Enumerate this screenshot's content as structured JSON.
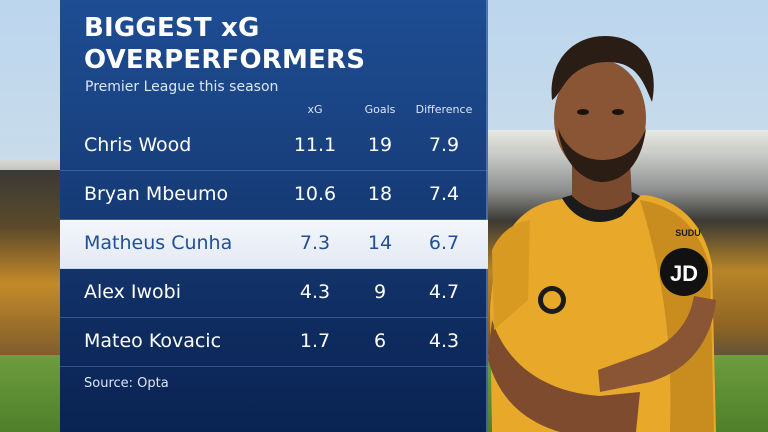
{
  "panel": {
    "title_lines": [
      "BIGGEST xG",
      "OVERPERFORMERS"
    ],
    "subtitle": "Premier League this season",
    "columns": [
      "xG",
      "Goals",
      "Difference"
    ],
    "rows": [
      {
        "name": "Chris Wood",
        "xg": "11.1",
        "goals": "19",
        "difference": "7.9",
        "highlighted": false
      },
      {
        "name": "Bryan Mbeumo",
        "xg": "10.6",
        "goals": "18",
        "difference": "7.4",
        "highlighted": false
      },
      {
        "name": "Matheus Cunha",
        "xg": "7.3",
        "goals": "14",
        "difference": "6.7",
        "highlighted": true
      },
      {
        "name": "Alex Iwobi",
        "xg": "4.3",
        "goals": "9",
        "difference": "4.7",
        "highlighted": false
      },
      {
        "name": "Mateo Kovacic",
        "xg": "1.7",
        "goals": "6",
        "difference": "4.3",
        "highlighted": false
      }
    ],
    "source": "Source: Opta"
  },
  "player_shirt": {
    "sponsor": "JD",
    "brand": "SUDU"
  },
  "colors": {
    "panel_blue": "#1e4d93",
    "highlight_row": "#f4f6fb",
    "highlight_text": "#1f4f96",
    "shirt_gold": "#e8a92a"
  }
}
